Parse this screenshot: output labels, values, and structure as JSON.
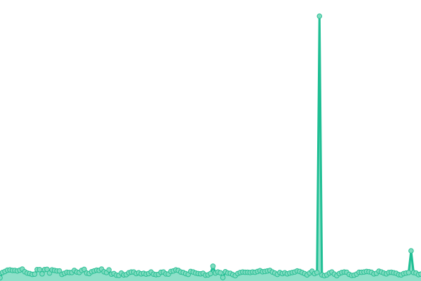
{
  "chart_data": {
    "type": "area",
    "title": "",
    "xlabel": "",
    "ylabel": "",
    "grid": false,
    "axes_visible": false,
    "markers": true,
    "ylim": [
      0,
      105
    ],
    "colors": {
      "line": "#1fbf94",
      "fill": "#8ee0c9",
      "marker_fill": "#7fdcc0",
      "marker_stroke": "#2cbf95"
    },
    "series": [
      {
        "values": [
          1.2,
          3.2,
          3.6,
          4.1,
          4.2,
          4.0,
          4.0,
          3.8,
          4.1,
          4.5,
          3.5,
          3.0,
          2.8,
          2.5,
          2.6,
          4.3,
          4.3,
          2.7,
          4.3,
          4.4,
          3.0,
          4.2,
          4.0,
          3.8,
          3.8,
          2.5,
          2.9,
          3.3,
          3.2,
          3.2,
          4.0,
          3.4,
          3.2,
          4.0,
          4.4,
          3.0,
          2.8,
          3.5,
          3.8,
          4.1,
          4.0,
          4.5,
          3.5,
          3.2,
          4.2,
          2.6,
          2.8,
          2.2,
          2.1,
          3.0,
          2.3,
          2.4,
          3.1,
          3.4,
          3.4,
          2.8,
          3.1,
          2.7,
          2.9,
          2.6,
          2.8,
          3.4,
          2.6,
          2.4,
          2.5,
          3.3,
          3.4,
          2.7,
          2.6,
          3.6,
          3.8,
          4.2,
          4.0,
          3.4,
          3.2,
          2.8,
          2.5,
          3.6,
          3.4,
          3.0,
          2.8,
          2.7,
          2.9,
          2.2,
          2.3,
          2.8,
          5.6,
          3.0,
          3.4,
          3.1,
          1.3,
          3.5,
          3.0,
          2.9,
          2.4,
          2.0,
          2.8,
          3.2,
          3.4,
          3.3,
          3.3,
          3.2,
          3.4,
          3.3,
          3.6,
          3.9,
          3.5,
          3.6,
          3.8,
          4.0,
          3.4,
          3.0,
          2.5,
          3.2,
          2.8,
          3.1,
          2.7,
          3.0,
          3.2,
          3.4,
          3.8,
          3.6,
          3.2,
          2.8,
          2.3,
          3.0,
          3.7,
          2.8,
          3.2,
          100,
          2.3,
          2.0,
          2.3,
          3.0,
          3.4,
          2.6,
          2.0,
          2.8,
          3.2,
          3.4,
          3.3,
          2.5,
          2.1,
          2.2,
          2.6,
          3.3,
          3.3,
          3.4,
          3.6,
          3.5,
          3.3,
          2.7,
          2.9,
          3.7,
          3.4,
          3.0,
          2.7,
          3.2,
          3.3,
          3.1,
          2.9,
          2.4,
          2.3,
          2.8,
          3.0,
          3.2,
          11.4,
          3.2,
          3.0,
          2.4,
          2.6
        ]
      }
    ]
  }
}
